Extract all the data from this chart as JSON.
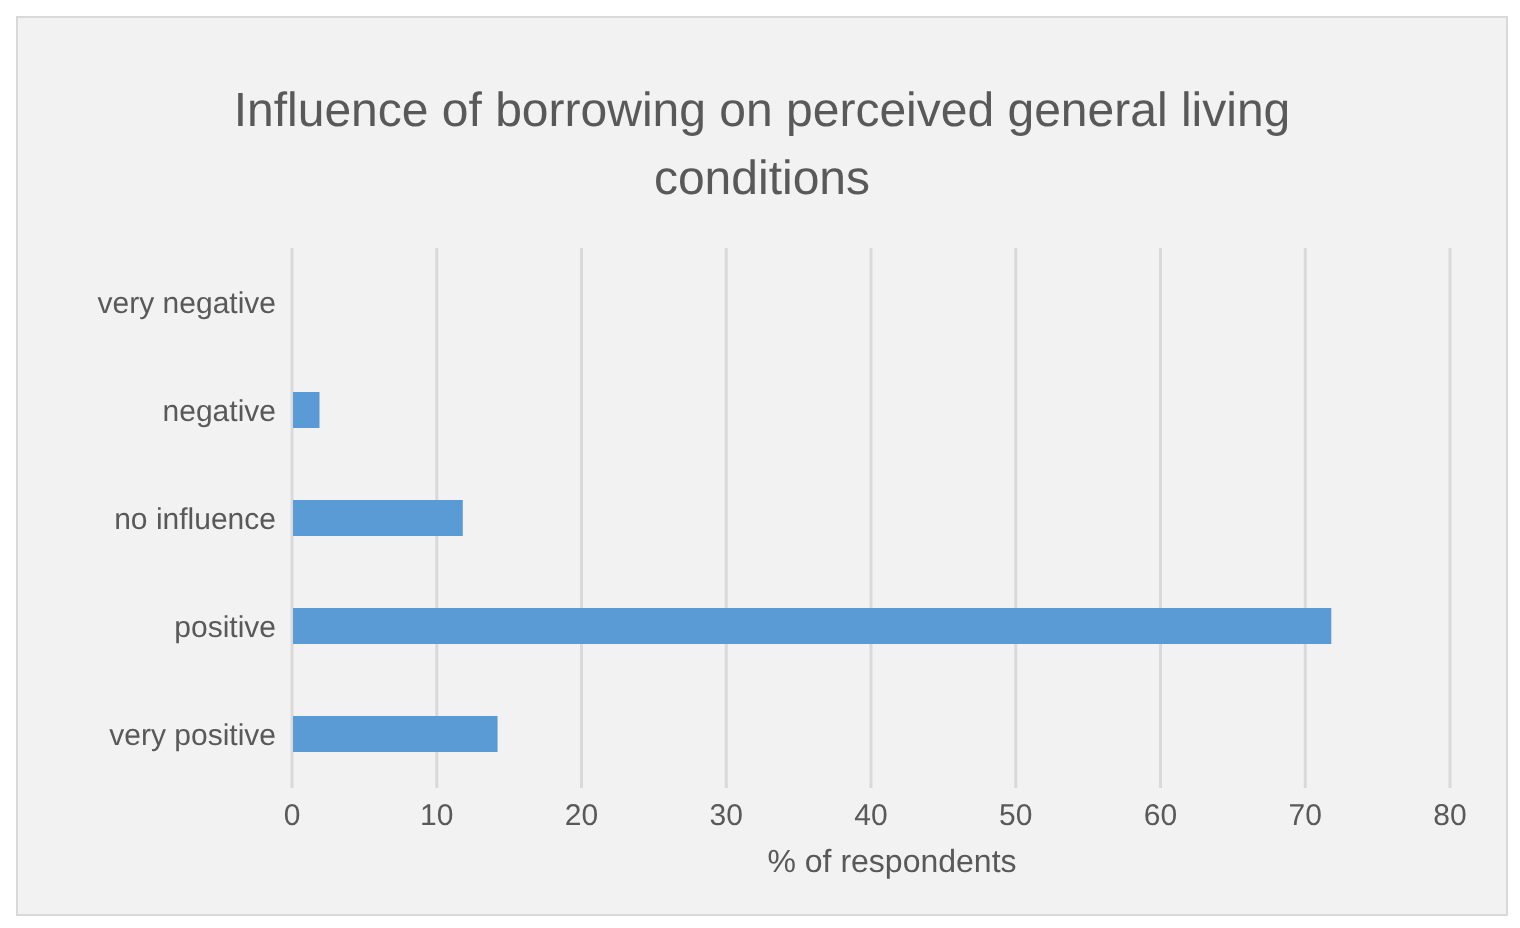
{
  "chart_data": {
    "type": "bar",
    "orientation": "horizontal",
    "title": "Influence of borrowing on perceived general living conditions",
    "xlabel": "% of respondents",
    "categories": [
      "very negative",
      "negative",
      "no influence",
      "positive",
      "very positive"
    ],
    "values": [
      0,
      1.9,
      11.8,
      71.8,
      14.2
    ],
    "color": "#5b9bd5",
    "xlim": [
      0,
      80
    ],
    "xticks": [
      0,
      10,
      20,
      30,
      40,
      50,
      60,
      70,
      80
    ],
    "grid": "x"
  }
}
